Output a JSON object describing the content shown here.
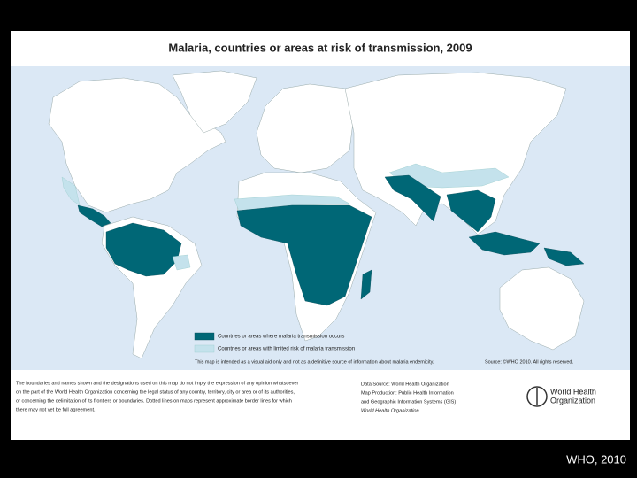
{
  "header": {
    "title": "Malaria, countries or areas at risk of transmission, 2009"
  },
  "legend": {
    "items": [
      "Countries or areas where malaria transmission occurs",
      "Countries or areas with limited risk of malaria transmission"
    ]
  },
  "note": "This map is intended as a visual aid only and not as a definitive source of information about malaria endemicity.",
  "source": "Source: ©WHO 2010. All rights reserved.",
  "disclaimer": {
    "lines": [
      "The boundaries and names shown and the designations used on this map do not imply the expression of any opinion whatsoever",
      "on the part of the World Health Organization concerning the legal status of any country, territory, city or area or of its authorities,",
      "or concerning the delimitation of its frontiers or boundaries. Dotted lines on maps represent approximate border lines for which",
      "there may not yet be full agreement."
    ]
  },
  "data_source": {
    "lines": [
      "Data Source: World Health Organization",
      "Map Production: Public Health Information",
      "and Geographic Information Systems (GIS)",
      "World Health Organization"
    ]
  },
  "logo": {
    "lines": [
      "World Health",
      "Organization"
    ]
  },
  "caption": "WHO, 2010"
}
